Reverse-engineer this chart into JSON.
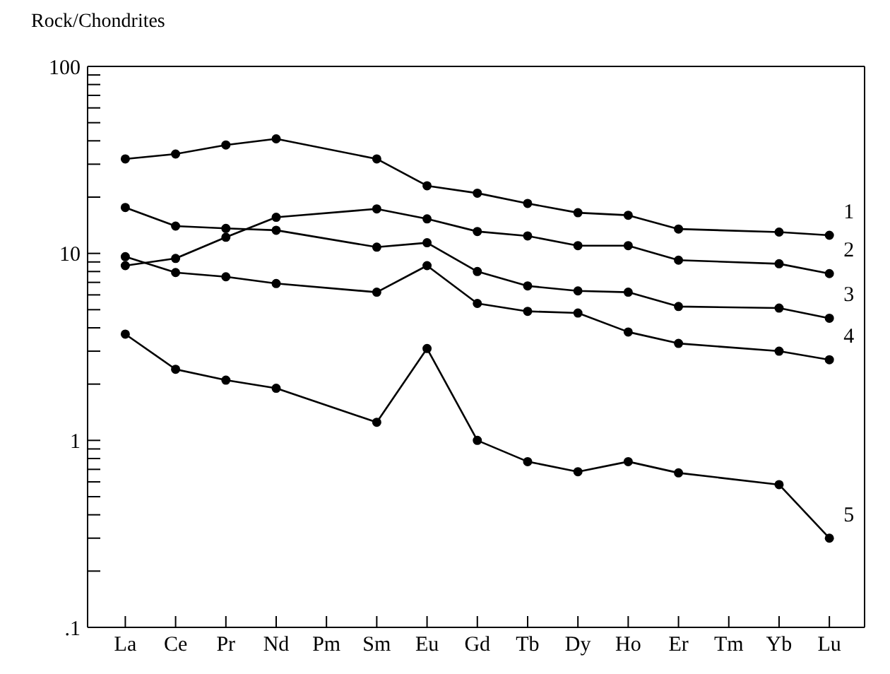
{
  "chart_data": {
    "type": "line",
    "ylabel": "Rock/Chondrites",
    "log": true,
    "marker": "circle",
    "line_style": "solid",
    "categories": [
      "La",
      "Ce",
      "Pr",
      "Nd",
      "Pm",
      "Sm",
      "Eu",
      "Gd",
      "Tb",
      "Dy",
      "Ho",
      "Er",
      "Tm",
      "Yb",
      "Lu"
    ],
    "ylim": [
      0.1,
      100
    ],
    "yticks": [
      {
        "value": 0.1,
        "label": ".1"
      },
      {
        "value": 0.2,
        "label": null
      },
      {
        "value": 0.3,
        "label": null
      },
      {
        "value": 0.4,
        "label": null
      },
      {
        "value": 0.5,
        "label": null
      },
      {
        "value": 0.6,
        "label": null
      },
      {
        "value": 0.7,
        "label": null
      },
      {
        "value": 0.8,
        "label": null
      },
      {
        "value": 0.9,
        "label": null
      },
      1,
      {
        "value": 2,
        "label": null
      },
      {
        "value": 3,
        "label": null
      },
      {
        "value": 4,
        "label": null
      },
      {
        "value": 5,
        "label": null
      },
      {
        "value": 6,
        "label": null
      },
      {
        "value": 7,
        "label": null
      },
      {
        "value": 8,
        "label": null
      },
      {
        "value": 9,
        "label": null
      },
      10,
      {
        "value": 20,
        "label": null
      },
      {
        "value": 30,
        "label": null
      },
      {
        "value": 40,
        "label": null
      },
      {
        "value": 50,
        "label": null
      },
      {
        "value": 60,
        "label": null
      },
      {
        "value": 70,
        "label": null
      },
      {
        "value": 80,
        "label": null
      },
      {
        "value": 90,
        "label": null
      },
      100
    ],
    "series": [
      {
        "name": "1",
        "color": "#000000",
        "values": [
          32,
          34,
          38,
          41,
          null,
          32,
          23,
          21,
          18.5,
          16.5,
          16,
          13.5,
          null,
          13,
          12.5
        ]
      },
      {
        "name": "2",
        "color": "#000000",
        "values": [
          8.6,
          9.4,
          12.2,
          15.6,
          null,
          17.3,
          15.3,
          13.1,
          12.4,
          11,
          11,
          9.2,
          null,
          8.8,
          7.8
        ]
      },
      {
        "name": "3",
        "color": "#000000",
        "values": [
          17.6,
          14,
          13.6,
          13.3,
          null,
          10.8,
          11.4,
          8,
          6.7,
          6.3,
          6.2,
          5.2,
          null,
          5.1,
          4.5
        ]
      },
      {
        "name": "4",
        "color": "#000000",
        "values": [
          9.6,
          7.9,
          7.5,
          6.9,
          null,
          6.2,
          8.6,
          5.4,
          4.9,
          4.8,
          3.8,
          3.3,
          null,
          3,
          2.7
        ]
      },
      {
        "name": "5",
        "color": "#000000",
        "values": [
          3.7,
          2.4,
          2.1,
          1.9,
          null,
          1.25,
          3.1,
          1,
          0.77,
          0.68,
          0.77,
          0.67,
          null,
          0.58,
          0.3
        ]
      }
    ]
  }
}
